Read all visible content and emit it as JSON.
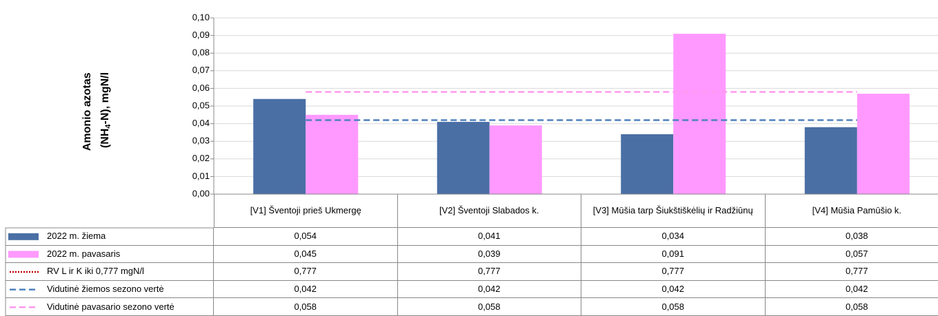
{
  "chart_data": {
    "type": "bar",
    "ylabel": [
      "Amonio azotas",
      [
        "(NH",
        "4",
        "-N), mgN/l"
      ]
    ],
    "categories": [
      "[V1] Šventoji prieš Ukmergę",
      "[V2] Šventoji Slabados k.",
      "[V3] Mūšia tarp Šiukštiškėlių ir Radžiūnų",
      "[V4] Mūšia Pamūšio k."
    ],
    "ylim": [
      0,
      0.1
    ],
    "yticks": [
      {
        "value": 0,
        "label": "0,00"
      },
      {
        "value": 0.01,
        "label": "0,01"
      },
      {
        "value": 0.02,
        "label": "0,02"
      },
      {
        "value": 0.03,
        "label": "0,03"
      },
      {
        "value": 0.04,
        "label": "0,04"
      },
      {
        "value": 0.05,
        "label": "0,05"
      },
      {
        "value": 0.06,
        "label": "0,06"
      },
      {
        "value": 0.07,
        "label": "0,07"
      },
      {
        "value": 0.08,
        "label": "0,08"
      },
      {
        "value": 0.09,
        "label": "0,09"
      },
      {
        "value": 0.1,
        "label": "0,10"
      }
    ],
    "grid": true,
    "series": [
      {
        "name": "2022 m. žiema",
        "type": "bar",
        "color": "#4a6fa5",
        "values": [
          0.054,
          0.041,
          0.034,
          0.038
        ],
        "value_labels": [
          "0,054",
          "0,041",
          "0,034",
          "0,038"
        ]
      },
      {
        "name": "2022 m. pavasaris",
        "type": "bar",
        "color": "#ff99ff",
        "values": [
          0.045,
          0.039,
          0.091,
          0.057
        ],
        "value_labels": [
          "0,045",
          "0,039",
          "0,091",
          "0,057"
        ]
      },
      {
        "name": "RV L ir K iki 0,777 mgN/l",
        "type": "line",
        "dash": "dotted",
        "color": "#c00000",
        "values": [
          0.777,
          0.777,
          0.777,
          0.777
        ],
        "value_labels": [
          "0,777",
          "0,777",
          "0,777",
          "0,777"
        ]
      },
      {
        "name": "Vidutinė žiemos sezono vertė",
        "type": "line",
        "dash": "dashed",
        "color": "#4f81bd",
        "values": [
          0.042,
          0.042,
          0.042,
          0.042
        ],
        "value_labels": [
          "0,042",
          "0,042",
          "0,042",
          "0,042"
        ]
      },
      {
        "name": "Vidutinė pavasario sezono vertė",
        "type": "line",
        "dash": "dashed",
        "color": "#ff99ee",
        "values": [
          0.058,
          0.058,
          0.058,
          0.058
        ],
        "value_labels": [
          "0,058",
          "0,058",
          "0,058",
          "0,058"
        ]
      }
    ]
  }
}
